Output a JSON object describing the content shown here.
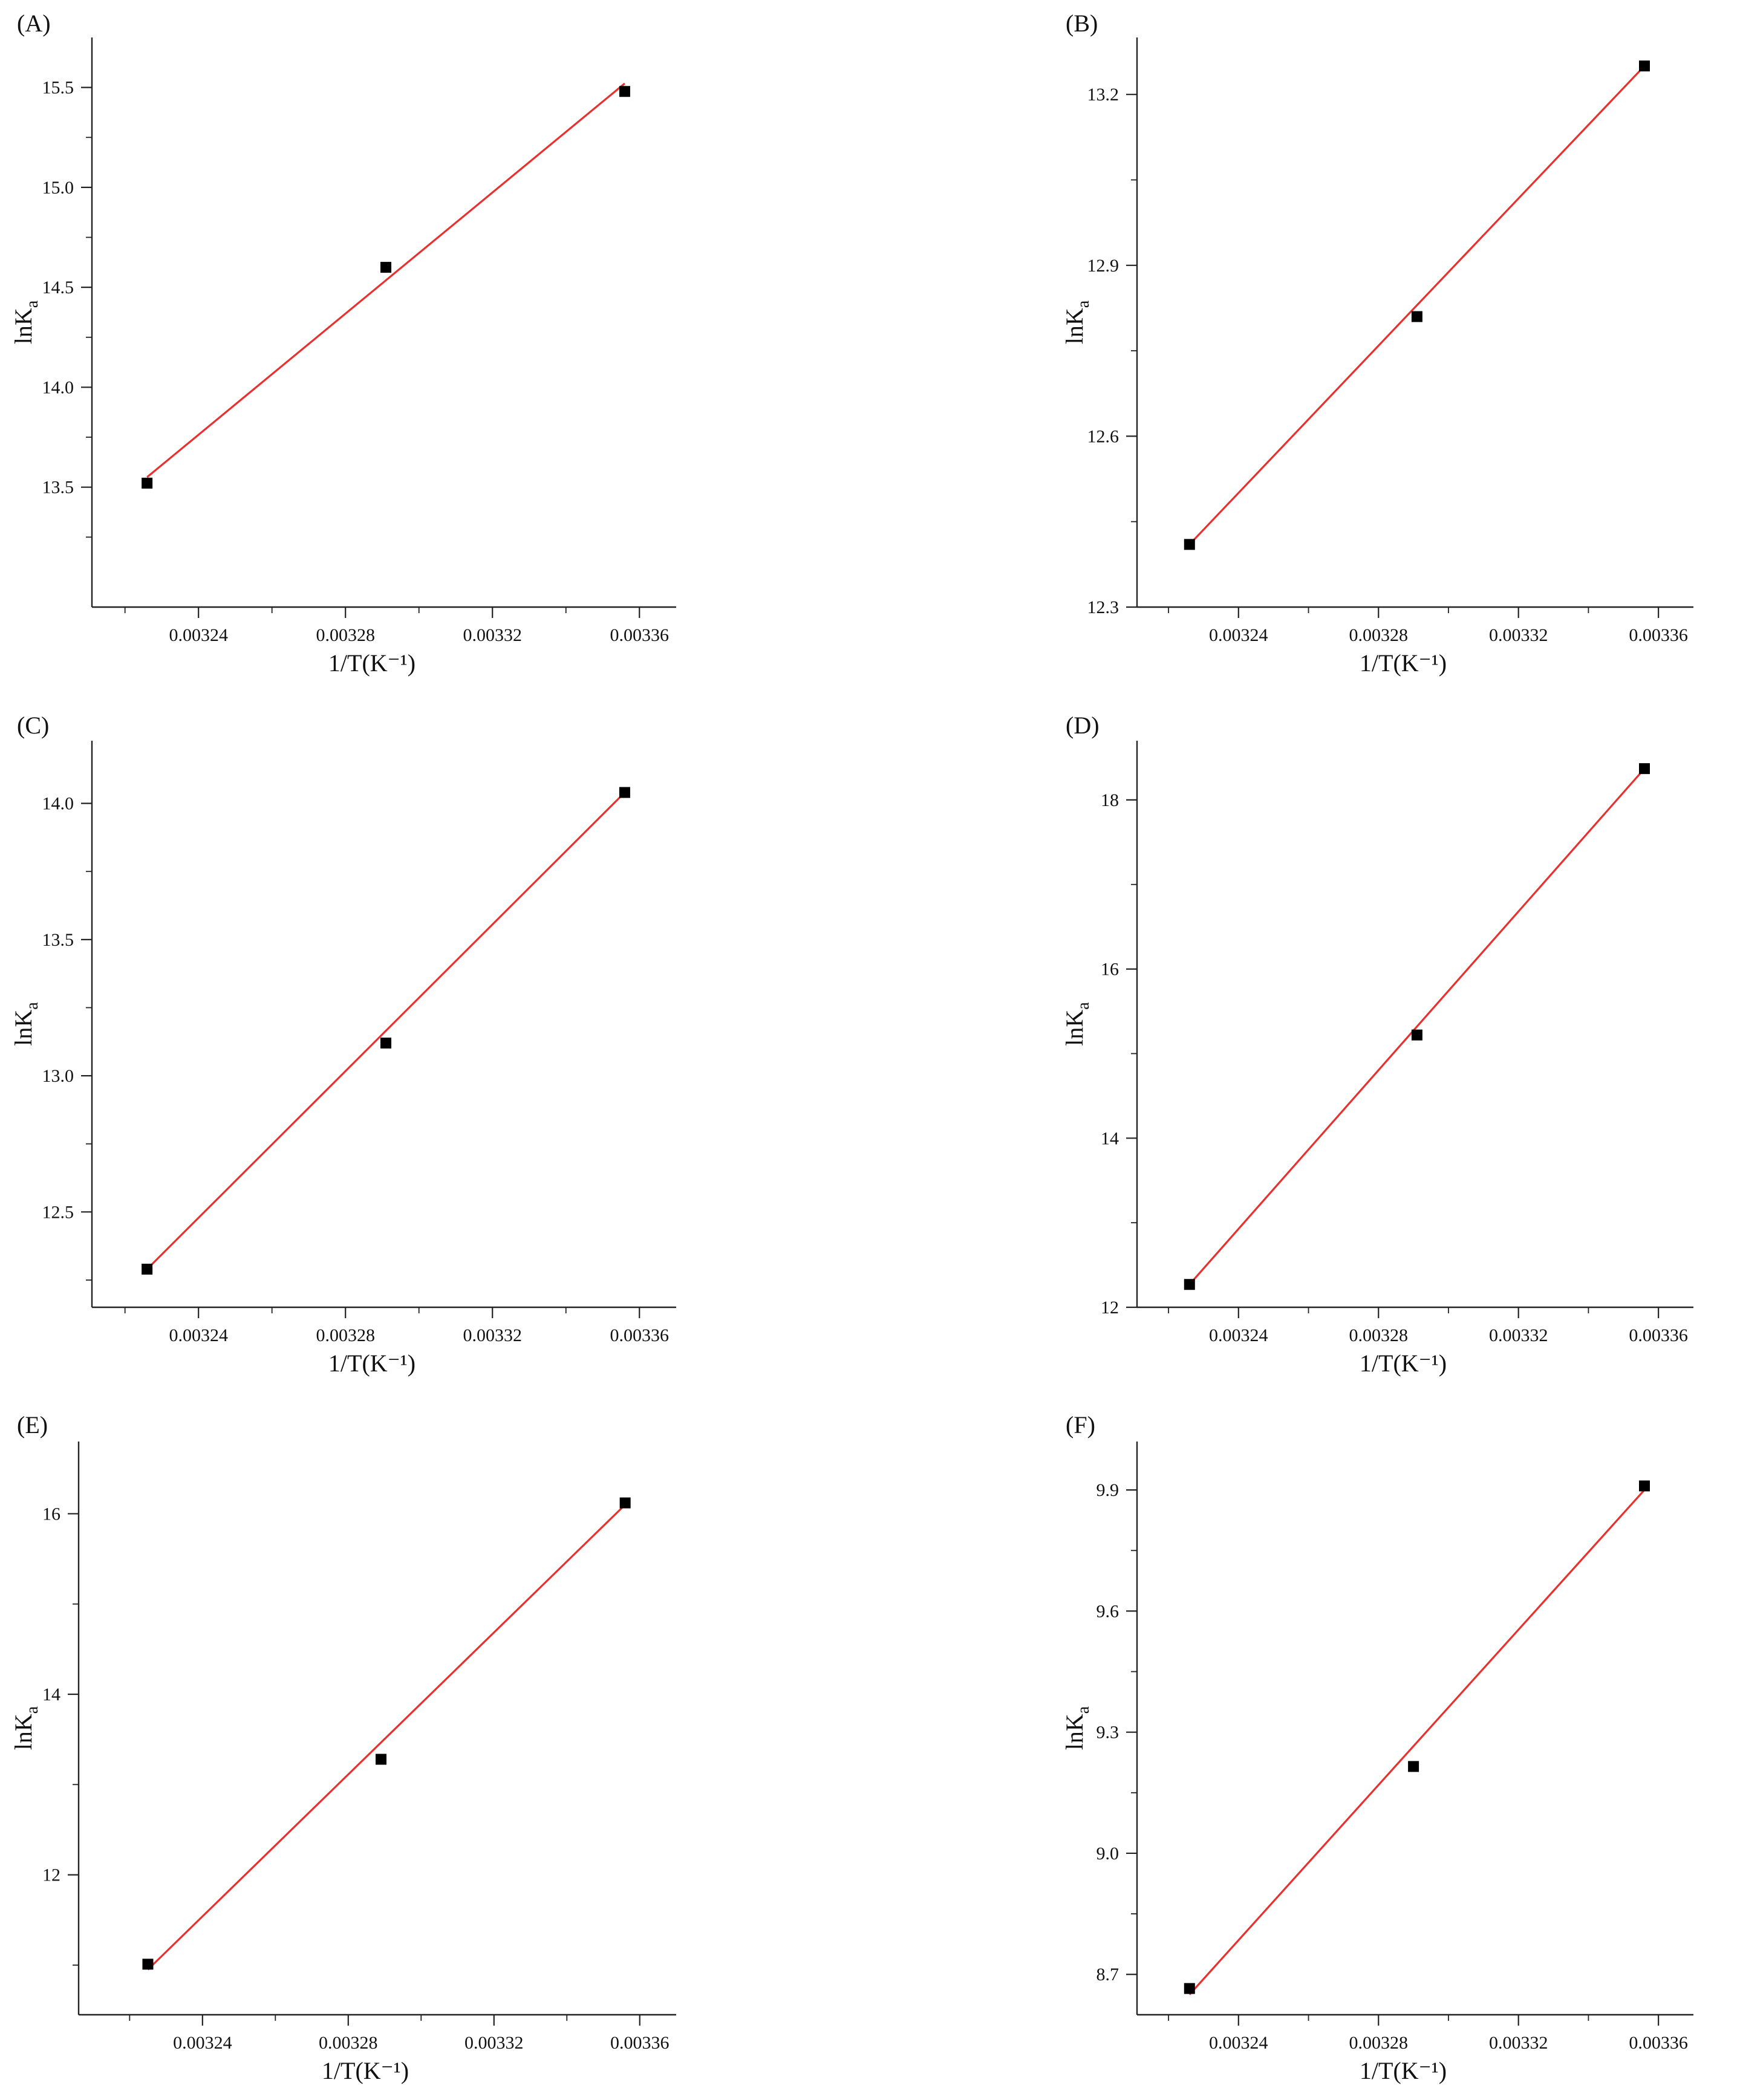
{
  "colors": {
    "fit_line": "#e8312f",
    "points": "#000000",
    "axes": "#222222",
    "background": "#ffffff"
  },
  "chart_data": [
    {
      "panel": "(A)",
      "type": "scatter",
      "xlabel": "1/T(K⁻¹)",
      "ylabel_main": "lnK",
      "ylabel_sub": "a",
      "xlim": [
        0.003211,
        0.00337
      ],
      "ylim": [
        12.9,
        15.75
      ],
      "xticks": [
        "0.00324",
        "0.00328",
        "0.00332",
        "0.00336"
      ],
      "yticks": [
        "13.5",
        "14.0",
        "14.5",
        "15.0",
        "15.5"
      ],
      "x": [
        0.003226,
        0.003291,
        0.003356
      ],
      "y": [
        13.52,
        14.6,
        15.48
      ],
      "fit": {
        "x": [
          0.003226,
          0.003356
        ],
        "y": [
          13.55,
          15.52
        ]
      }
    },
    {
      "panel": "(B)",
      "type": "scatter",
      "xlabel": "1/T(K⁻¹)",
      "ylabel_main": "lnK",
      "ylabel_sub": "a",
      "xlim": [
        0.003211,
        0.00337
      ],
      "ylim": [
        12.3,
        13.3
      ],
      "xticks": [
        "0.00324",
        "0.00328",
        "0.00332",
        "0.00336"
      ],
      "yticks": [
        "12.3",
        "12.6",
        "12.9",
        "13.2"
      ],
      "x": [
        0.003226,
        0.003291,
        0.003356
      ],
      "y": [
        12.41,
        12.81,
        13.25
      ],
      "fit": {
        "x": [
          0.003226,
          0.003356
        ],
        "y": [
          12.41,
          13.25
        ]
      }
    },
    {
      "panel": "(C)",
      "type": "scatter",
      "xlabel": "1/T(K⁻¹)",
      "ylabel_main": "lnK",
      "ylabel_sub": "a",
      "xlim": [
        0.003211,
        0.00337
      ],
      "ylim": [
        12.15,
        14.23
      ],
      "xticks": [
        "0.00324",
        "0.00328",
        "0.00332",
        "0.00336"
      ],
      "yticks": [
        "12.5",
        "13.0",
        "13.5",
        "14.0"
      ],
      "x": [
        0.003226,
        0.003291,
        0.003356
      ],
      "y": [
        12.29,
        13.12,
        14.04
      ],
      "fit": {
        "x": [
          0.003226,
          0.003356
        ],
        "y": [
          12.29,
          14.04
        ]
      }
    },
    {
      "panel": "(D)",
      "type": "scatter",
      "xlabel": "1/T(K⁻¹)",
      "ylabel_main": "lnK",
      "ylabel_sub": "a",
      "xlim": [
        0.003211,
        0.00337
      ],
      "ylim": [
        12,
        18.7
      ],
      "xticks": [
        "0.00324",
        "0.00328",
        "0.00332",
        "0.00336"
      ],
      "yticks": [
        "12",
        "14",
        "16",
        "18"
      ],
      "x": [
        0.003226,
        0.003291,
        0.003356
      ],
      "y": [
        12.27,
        15.22,
        18.37
      ],
      "fit": {
        "x": [
          0.003226,
          0.003356
        ],
        "y": [
          12.27,
          18.37
        ]
      }
    },
    {
      "panel": "(E)",
      "type": "scatter",
      "xlabel": "1/T(K⁻¹)",
      "ylabel_main": "lnK",
      "ylabel_sub": "a",
      "xlim": [
        0.003206,
        0.00337
      ],
      "ylim": [
        10.45,
        16.8
      ],
      "xticks": [
        "0.00324",
        "0.00328",
        "0.00332",
        "0.00336"
      ],
      "yticks": [
        "12",
        "14",
        "16"
      ],
      "x": [
        0.003225,
        0.003289,
        0.003356
      ],
      "y": [
        11.01,
        13.28,
        16.12
      ],
      "fit": {
        "x": [
          0.003225,
          0.003356
        ],
        "y": [
          10.95,
          16.1
        ]
      }
    },
    {
      "panel": "(F)",
      "type": "scatter",
      "xlabel": "1/T(K⁻¹)",
      "ylabel_main": "lnK",
      "ylabel_sub": "a",
      "xlim": [
        0.003211,
        0.00337
      ],
      "ylim": [
        8.6,
        10.02
      ],
      "xticks": [
        "0.00324",
        "0.00328",
        "0.00332",
        "0.00336"
      ],
      "yticks": [
        "8.7",
        "9.0",
        "9.3",
        "9.6",
        "9.9"
      ],
      "x": [
        0.003226,
        0.00329,
        0.003356
      ],
      "y": [
        8.665,
        9.215,
        9.91
      ],
      "fit": {
        "x": [
          0.003226,
          0.003356
        ],
        "y": [
          8.65,
          9.9
        ]
      }
    }
  ]
}
